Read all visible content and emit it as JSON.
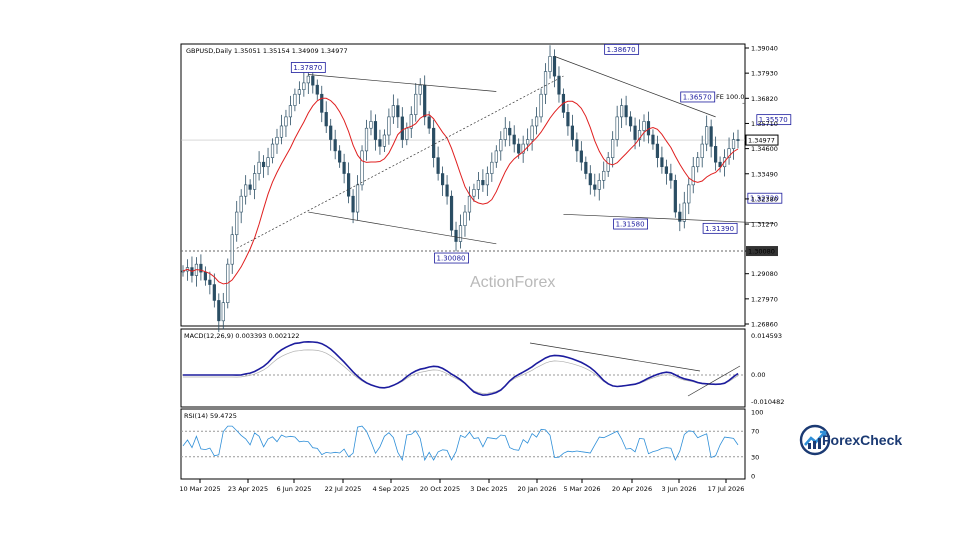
{
  "header": {
    "symbol_line": "GBPUSD,Daily  1.35051 1.35154 1.34909 1.34977"
  },
  "watermark": "ActionForex",
  "brand": {
    "name": "ForexCheck"
  },
  "chart_data": {
    "type": "candlestick",
    "main": {
      "ylim": [
        1.2686,
        1.3904
      ],
      "y_ticks": [
        "1.39040",
        "1.37930",
        "1.36820",
        "1.35710",
        "1.34600",
        "1.33490",
        "1.32380",
        "1.31270",
        "1.30080",
        "1.29080",
        "1.27970",
        "1.26860"
      ],
      "current_price": "1.34977",
      "level_labels": [
        {
          "text": "1.37870",
          "value": 1.3787,
          "date_idx": 28
        },
        {
          "text": "1.38670",
          "value": 1.3867,
          "date_idx": 98
        },
        {
          "text": "1.36570",
          "value": 1.3657,
          "date_idx": 115
        },
        {
          "text": "1.35570",
          "value": 1.3557,
          "date_idx": 132
        },
        {
          "text": "1.32720",
          "value": 1.3272,
          "date_idx": 130
        },
        {
          "text": "1.31580",
          "value": 1.3158,
          "date_idx": 100
        },
        {
          "text": "1.31390",
          "value": 1.3139,
          "date_idx": 120
        },
        {
          "text": "1.30080",
          "value": 1.3008,
          "date_idx": 60
        }
      ],
      "fe_label": "FE 100.0",
      "hline_value": 1.3008,
      "hline_label": "1.30080"
    },
    "macd": {
      "label": "MACD(12,26,9) 0.003393 0.002122",
      "ticks": [
        "0.014593",
        "0.00",
        "-0.010482"
      ]
    },
    "rsi": {
      "label": "RSI(14) 59.4725",
      "ticks": [
        "100",
        "70",
        "30",
        "0"
      ]
    },
    "x_ticks": [
      "10 Mar 2025",
      "23 Apr 2025",
      "6 Jun 2025",
      "22 Jul 2025",
      "4 Sep 2025",
      "20 Oct 2025",
      "3 Dec 2025",
      "20 Jan 2026",
      "5 Mar 2026",
      "20 Apr 2026",
      "3 Jun 2026",
      "17 Jul 2026"
    ],
    "close_series": [
      1.292,
      1.2935,
      1.29,
      1.295,
      1.2915,
      1.288,
      1.286,
      1.279,
      1.27,
      1.278,
      1.295,
      1.308,
      1.318,
      1.325,
      1.33,
      1.328,
      1.335,
      1.34,
      1.338,
      1.342,
      1.348,
      1.351,
      1.356,
      1.36,
      1.365,
      1.37,
      1.372,
      1.375,
      1.378,
      1.374,
      1.37,
      1.362,
      1.356,
      1.35,
      1.345,
      1.34,
      1.335,
      1.325,
      1.318,
      1.33,
      1.345,
      1.355,
      1.358,
      1.35,
      1.347,
      1.352,
      1.36,
      1.365,
      1.36,
      1.35,
      1.355,
      1.361,
      1.37,
      1.374,
      1.36,
      1.355,
      1.342,
      1.335,
      1.33,
      1.325,
      1.31,
      1.305,
      1.312,
      1.318,
      1.325,
      1.328,
      1.332,
      1.33,
      1.335,
      1.34,
      1.345,
      1.35,
      1.355,
      1.352,
      1.348,
      1.344,
      1.348,
      1.35,
      1.356,
      1.36,
      1.37,
      1.38,
      1.3867,
      1.378,
      1.37,
      1.362,
      1.356,
      1.35,
      1.345,
      1.34,
      1.335,
      1.33,
      1.328,
      1.332,
      1.336,
      1.342,
      1.35,
      1.36,
      1.365,
      1.36,
      1.356,
      1.35,
      1.354,
      1.358,
      1.352,
      1.348,
      1.342,
      1.338,
      1.335,
      1.332,
      1.318,
      1.3139,
      1.322,
      1.33,
      1.338,
      1.342,
      1.348,
      1.3557,
      1.347,
      1.34,
      1.338,
      1.342,
      1.346,
      1.35,
      1.3498
    ]
  }
}
